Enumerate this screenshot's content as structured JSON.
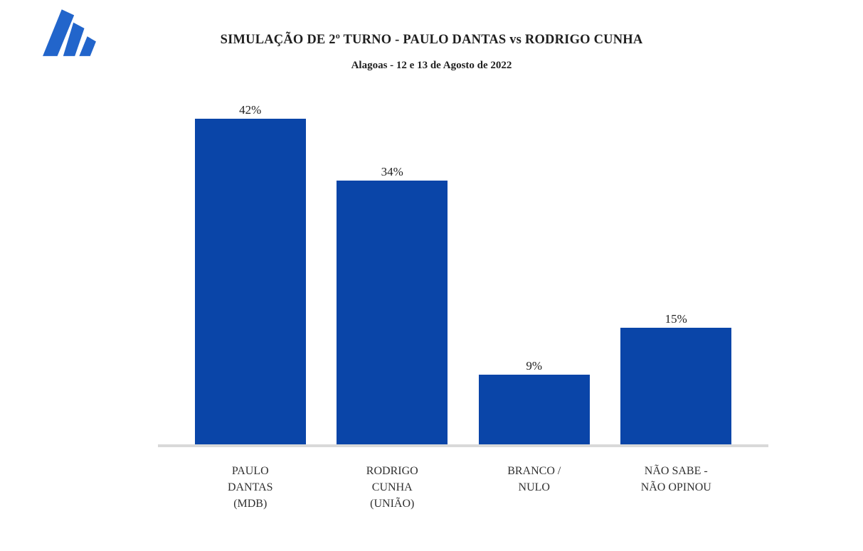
{
  "header": {
    "title": "SIMULAÇÃO DE 2º TURNO - PAULO DANTAS vs RODRIGO CUNHA",
    "subtitle": "Alagoas - 12 e 13 de Agosto de 2022"
  },
  "logo": {
    "name": "three-slanted-bars-logo",
    "color": "#2265cb"
  },
  "chart_data": {
    "type": "bar",
    "title": "SIMULAÇÃO DE 2º TURNO - PAULO DANTAS vs RODRIGO CUNHA",
    "subtitle": "Alagoas - 12 e 13 de Agosto de 2022",
    "categories": [
      "PAULO DANTAS (MDB)",
      "RODRIGO CUNHA (UNIÃO)",
      "BRANCO / NULO",
      "NÃO SABE - NÃO OPINOU"
    ],
    "category_lines": [
      [
        "PAULO",
        "DANTAS",
        "(MDB)"
      ],
      [
        "RODRIGO",
        "CUNHA",
        "(UNIÃO)"
      ],
      [
        "BRANCO /",
        "NULO"
      ],
      [
        "NÃO SABE  -",
        "NÃO OPINOU"
      ]
    ],
    "values": [
      42,
      34,
      9,
      15
    ],
    "data_labels": [
      "42%",
      "34%",
      "9%",
      "15%"
    ],
    "unit": "%",
    "ylim": [
      0,
      45
    ],
    "grid": false,
    "legend": false,
    "bar_color": "#0a45a8",
    "axis_color": "#d9d9d9",
    "label_color": "#1f1f1f",
    "xlabel": "",
    "ylabel": ""
  }
}
